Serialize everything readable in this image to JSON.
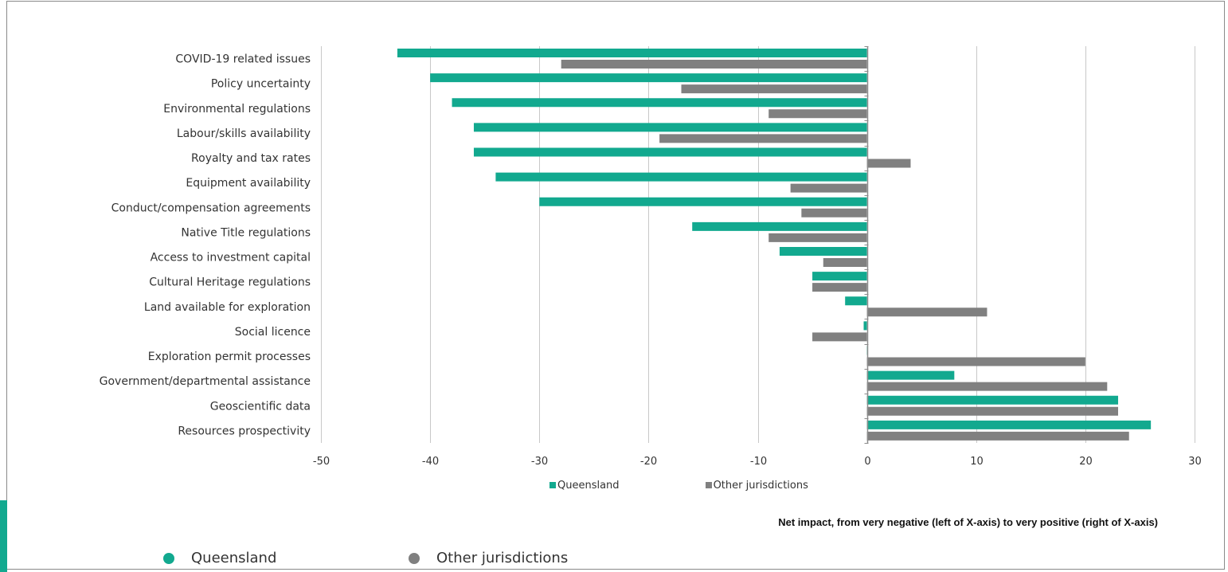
{
  "chart_data": {
    "type": "bar",
    "orientation": "horizontal",
    "categories": [
      "COVID-19 related issues",
      "Policy uncertainty",
      "Environmental regulations",
      "Labour/skills availability",
      "Royalty and tax rates",
      "Equipment availability",
      "Conduct/compensation agreements",
      "Native Title regulations",
      "Access to investment capital",
      "Cultural Heritage regulations",
      "Land available for exploration",
      "Social licence",
      "Exploration permit processes",
      "Government/departmental assistance",
      "Geoscientific data",
      "Resources prospectivity"
    ],
    "series": [
      {
        "name": "Queensland",
        "color": "#12a98f",
        "values": [
          -43,
          -40,
          -38,
          -36,
          -36,
          -34,
          -30,
          -16,
          -8,
          -5,
          -2,
          -0.3,
          0,
          8,
          23,
          26
        ]
      },
      {
        "name": "Other jurisdictions",
        "color": "#808080",
        "values": [
          -28,
          -17,
          -9,
          -19,
          4,
          -7,
          -6,
          -9,
          -4,
          -5,
          11,
          -5,
          20,
          22,
          23,
          24
        ]
      }
    ],
    "xlim": [
      -50,
      30
    ],
    "x_ticks": [
      -50,
      -40,
      -30,
      -20,
      -10,
      0,
      10,
      20,
      30
    ],
    "xlabel": "Net impact, from very negative (left of X-axis) to very positive (right of X-axis)",
    "grid": "vertical",
    "legend": "bottom"
  },
  "legend_bottom": {
    "queensland": "Queensland",
    "other": "Other jurisdictions",
    "queensland_color": "#12a98f",
    "other_color": "#808080"
  }
}
